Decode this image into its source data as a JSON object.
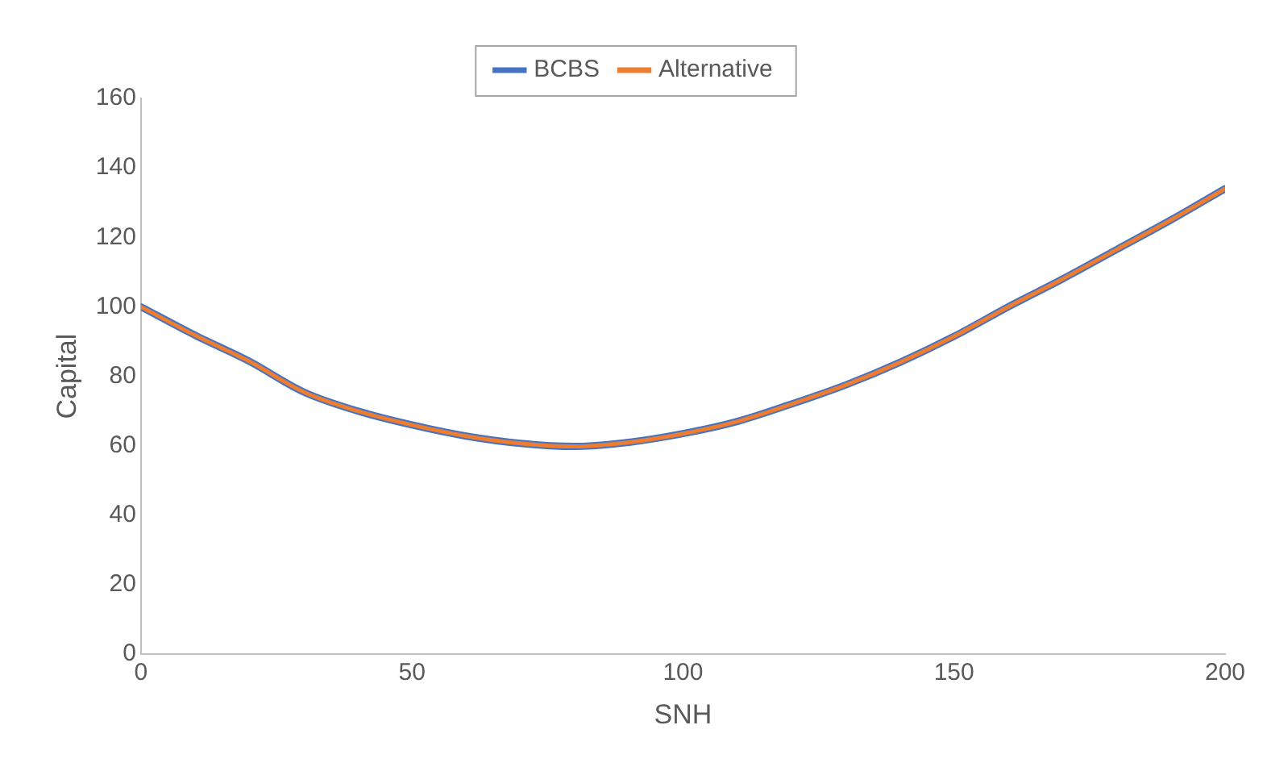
{
  "chart_data": {
    "type": "line",
    "xlabel": "SNH",
    "ylabel": "Capital",
    "x": [
      0,
      10,
      20,
      30,
      40,
      50,
      60,
      70,
      80,
      90,
      100,
      110,
      120,
      130,
      140,
      150,
      160,
      170,
      180,
      190,
      200
    ],
    "series": [
      {
        "name": "BCBS",
        "color": "#4472c4",
        "values": [
          100,
          91.8,
          84.3,
          75.5,
          70,
          66,
          62.8,
          60.7,
          59.8,
          61,
          63.5,
          67,
          72,
          77.5,
          84,
          91.5,
          100,
          108,
          116.5,
          125,
          134
        ]
      },
      {
        "name": "Alternative",
        "color": "#ed7d31",
        "values": [
          100,
          91.8,
          84.3,
          75.5,
          70,
          66,
          62.8,
          60.7,
          59.8,
          61,
          63.5,
          67,
          72,
          77.5,
          84,
          91.5,
          100,
          108,
          116.5,
          125,
          134
        ]
      }
    ],
    "xlim": [
      0,
      200
    ],
    "xticks": [
      0,
      50,
      100,
      150,
      200
    ],
    "ylim": [
      0,
      160
    ],
    "yticks": [
      0,
      20,
      40,
      60,
      80,
      100,
      120,
      140,
      160
    ],
    "grid": false,
    "legend": "top",
    "marker": "none",
    "line_style": "solid"
  }
}
